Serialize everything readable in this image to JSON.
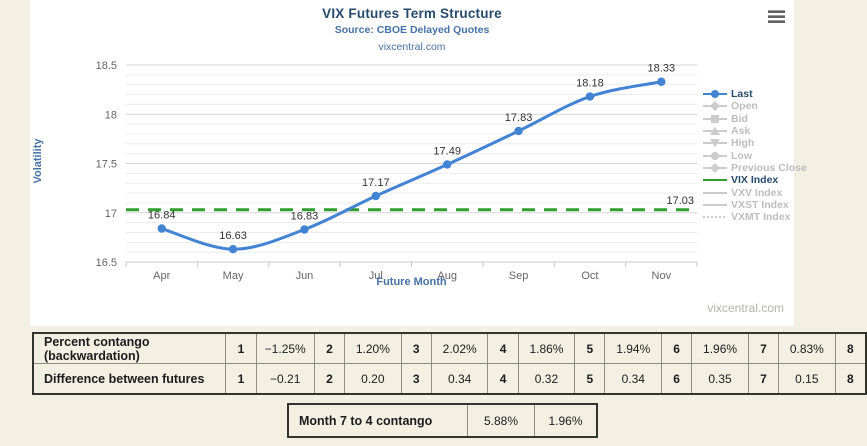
{
  "chart_data": {
    "type": "line",
    "title": "VIX Futures Term Structure",
    "subtitle": "Source: CBOE Delayed Quotes",
    "link": "vixcentral.com",
    "watermark": "vixcentral.com",
    "xlabel": "Future Month",
    "ylabel": "Volatility",
    "categories": [
      "Apr",
      "May",
      "Jun",
      "Jul",
      "Aug",
      "Sep",
      "Oct",
      "Nov"
    ],
    "series": [
      {
        "name": "Last",
        "values": [
          16.84,
          16.63,
          16.83,
          17.17,
          17.49,
          17.83,
          18.18,
          18.33
        ]
      }
    ],
    "vix_index_line": {
      "label": "VIX Index",
      "value": 17.03,
      "display": "17.03"
    },
    "ylim": [
      16.5,
      18.5
    ],
    "ytick_step": 0.5,
    "minor_step": 0.1,
    "grid": true,
    "legend_position": "right",
    "legend": [
      {
        "label": "Last",
        "marker": "circle",
        "active": true
      },
      {
        "label": "Open",
        "marker": "diamond",
        "active": false
      },
      {
        "label": "Bid",
        "marker": "square",
        "active": false
      },
      {
        "label": "Ask",
        "marker": "triangle",
        "active": false
      },
      {
        "label": "High",
        "marker": "triangle-down",
        "active": false
      },
      {
        "label": "Low",
        "marker": "circle",
        "active": false
      },
      {
        "label": "Previous Close",
        "marker": "diamond",
        "active": false
      },
      {
        "label": "VIX Index",
        "marker": "line",
        "active": true,
        "color": "#2f9e2f"
      },
      {
        "label": "VXV Index",
        "marker": "line",
        "active": false
      },
      {
        "label": "VXST Index",
        "marker": "line",
        "active": false
      },
      {
        "label": "VXMT Index",
        "marker": "line-dotted",
        "active": false
      }
    ],
    "colors": {
      "line_blue": "#4383d4",
      "vix_green": "#2f9e2f",
      "inactive_marker": "#cccccc",
      "grid_major": "#d6d6d6",
      "grid_minor": "#ececec",
      "axis_line": "#c8c8c8",
      "axis_label": "#666666",
      "data_label": "#333333"
    }
  },
  "tables": {
    "futures": {
      "rows": [
        {
          "label": "Percent contango (backwardation)",
          "cells": [
            "1",
            "−1.25%",
            "2",
            "1.20%",
            "3",
            "2.02%",
            "4",
            "1.86%",
            "5",
            "1.94%",
            "6",
            "1.96%",
            "7",
            "0.83%",
            "8"
          ]
        },
        {
          "label": "Difference between futures",
          "cells": [
            "1",
            "−0.21",
            "2",
            "0.20",
            "3",
            "0.34",
            "4",
            "0.32",
            "5",
            "0.34",
            "6",
            "0.35",
            "7",
            "0.15",
            "8"
          ]
        }
      ]
    },
    "summary": {
      "label": "Month 7 to 4 contango",
      "values": [
        "5.88%",
        "1.96%"
      ]
    }
  }
}
